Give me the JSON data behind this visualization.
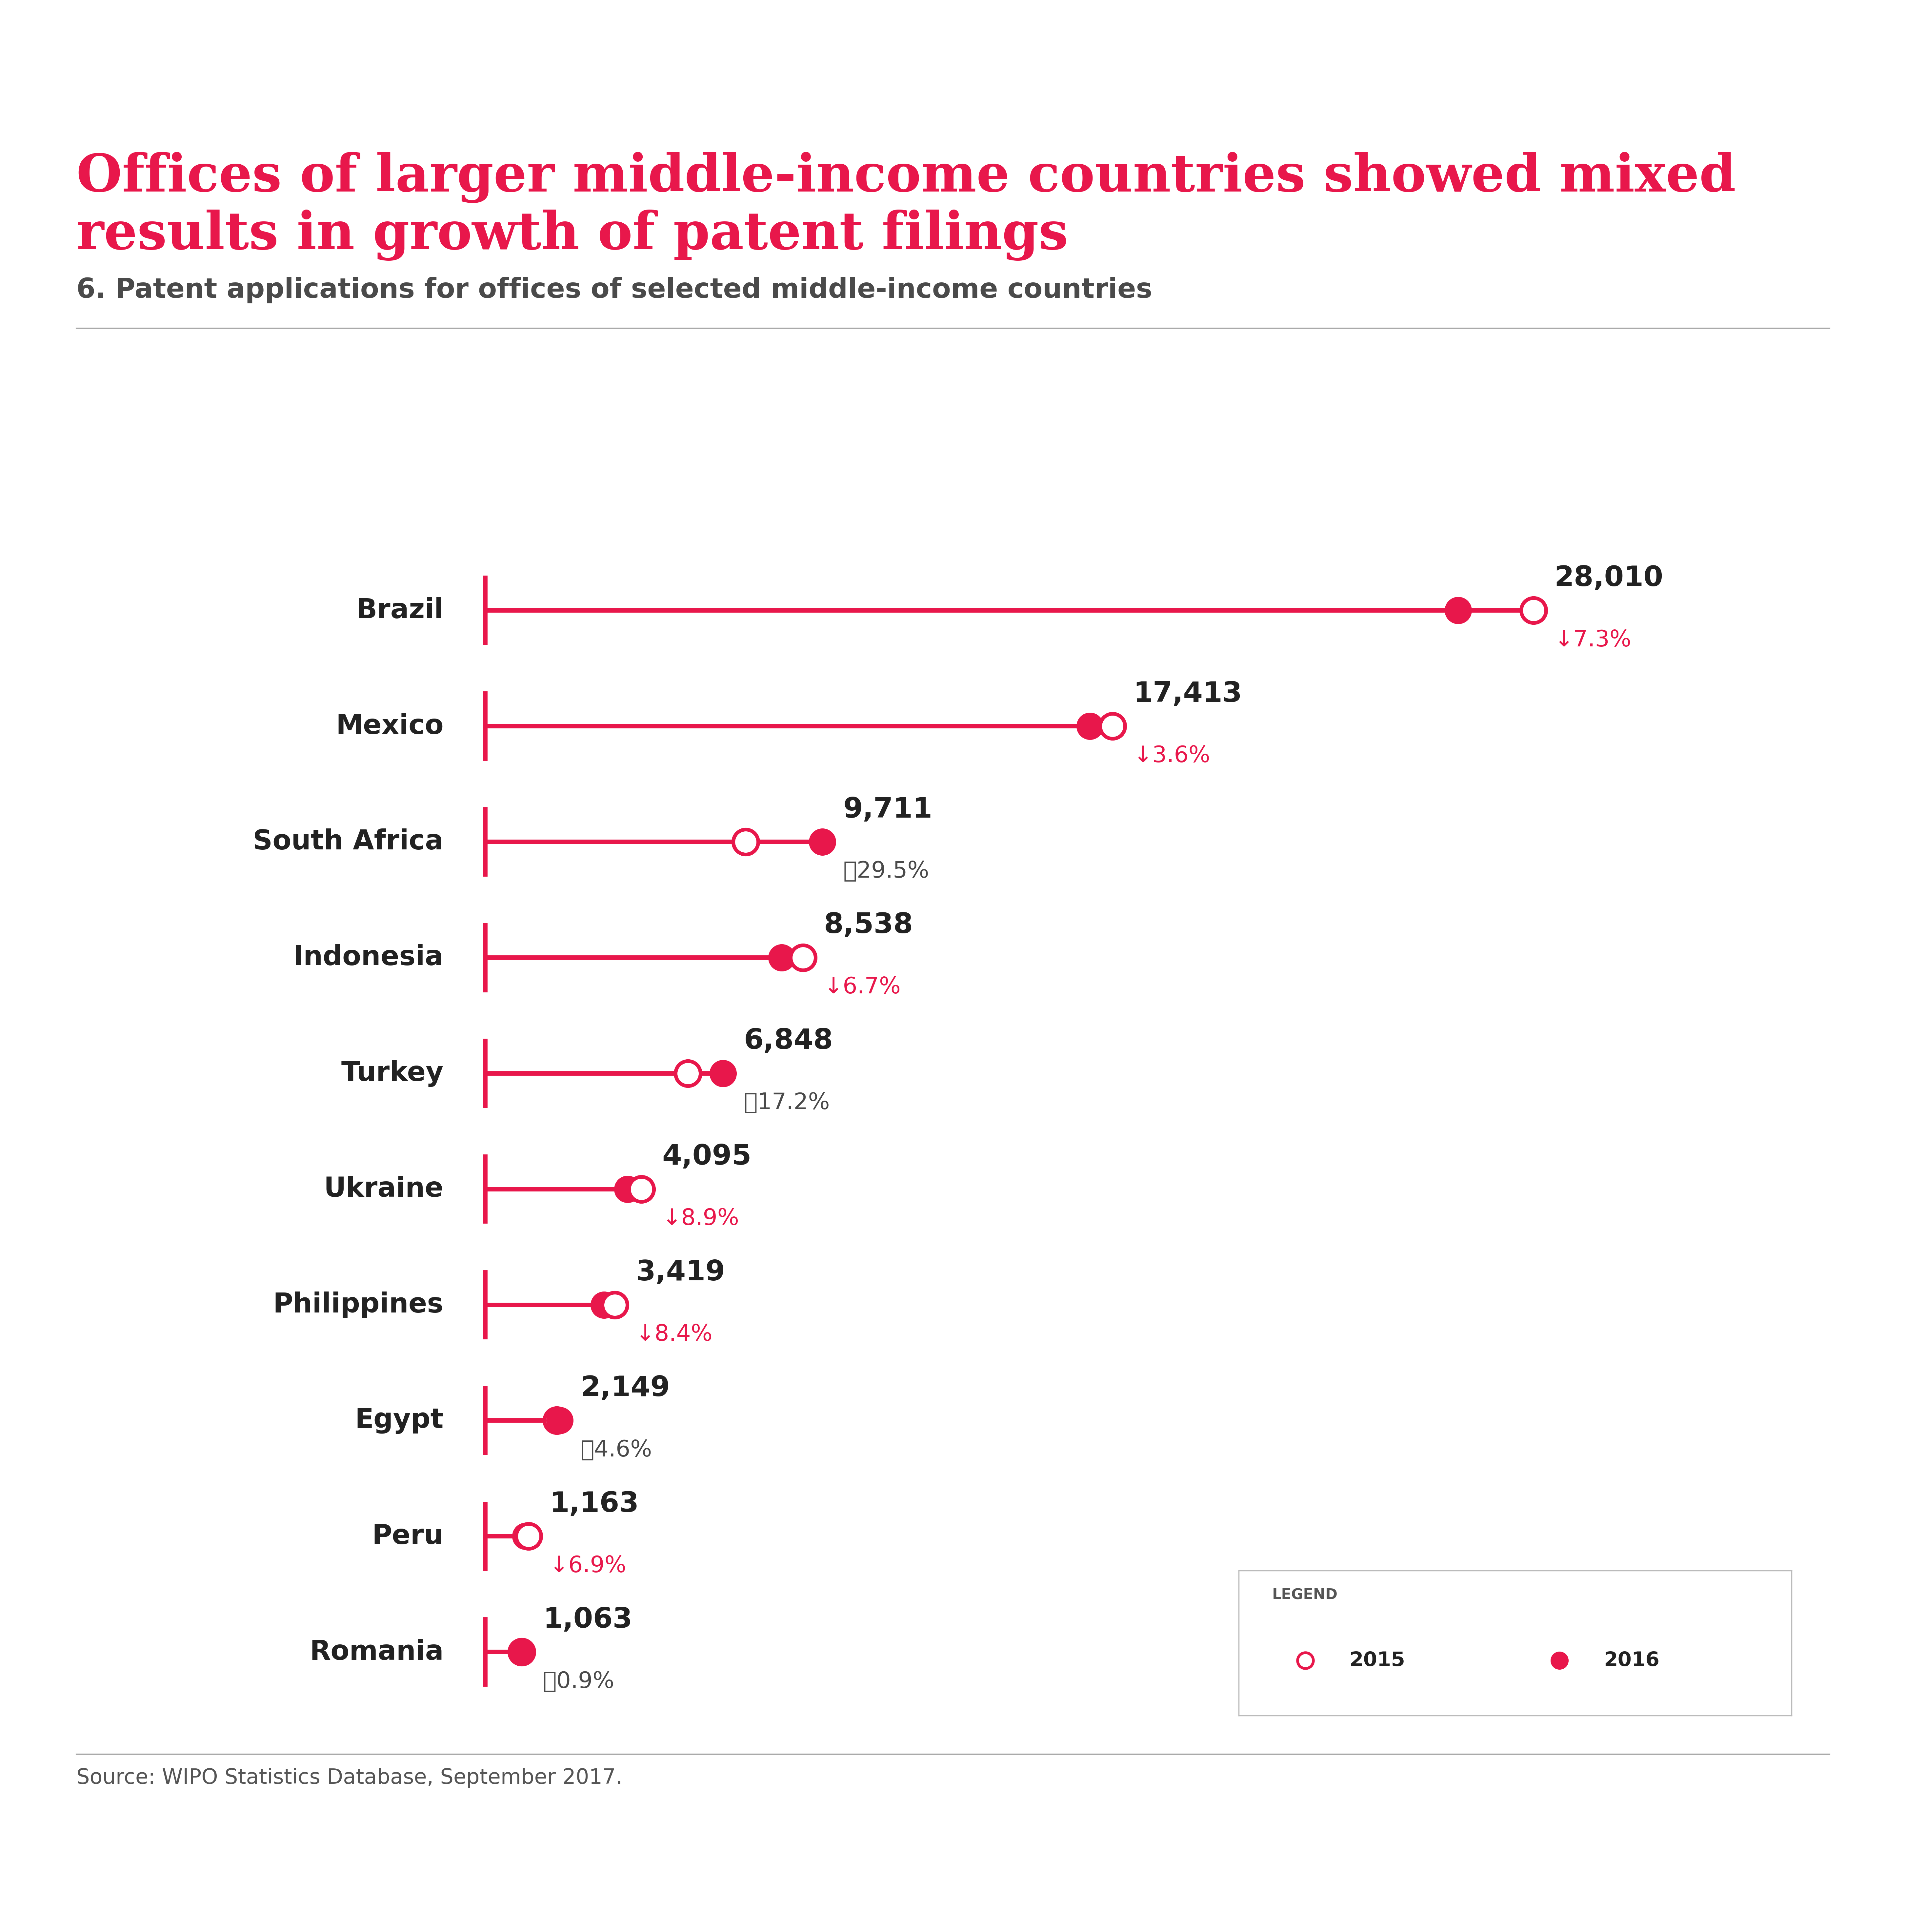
{
  "title_line1": "Offices of larger middle-income countries showed mixed",
  "title_line2": "results in growth of patent filings",
  "subtitle": "6. Patent applications for offices of selected middle-income countries",
  "source": "Source: WIPO Statistics Database, September 2017.",
  "title_color": "#e8174b",
  "subtitle_color": "#4a4a4a",
  "text_color": "#222222",
  "bar_color": "#e8174b",
  "background_color": "#ffffff",
  "change_gray": "#4a4a4a",
  "countries": [
    "Brazil",
    "Mexico",
    "South Africa",
    "Indonesia",
    "Turkey",
    "Ukraine",
    "Philippines",
    "Egypt",
    "Peru",
    "Romania"
  ],
  "values_2016": [
    28010,
    17413,
    9711,
    8538,
    6848,
    4095,
    3419,
    2149,
    1163,
    1063
  ],
  "values_2015": [
    30185,
    18063,
    7501,
    9150,
    5840,
    4495,
    3733,
    2056,
    1250,
    1054
  ],
  "labels_2016": [
    "28,010",
    "17,413",
    "9,711",
    "8,538",
    "6,848",
    "4,095",
    "3,419",
    "2,149",
    "1,163",
    "1,063"
  ],
  "changes": [
    "↓7.3%",
    "↓3.6%",
    "ᤒ29.5%",
    "↓6.7%",
    "ᤒ17.2%",
    "↓8.9%",
    "↓8.4%",
    "ᤒ4.6%",
    "↓6.9%",
    "ᤒ0.9%"
  ],
  "change_is_up": [
    false,
    false,
    true,
    false,
    true,
    false,
    false,
    true,
    false,
    true
  ],
  "max_val": 31500
}
